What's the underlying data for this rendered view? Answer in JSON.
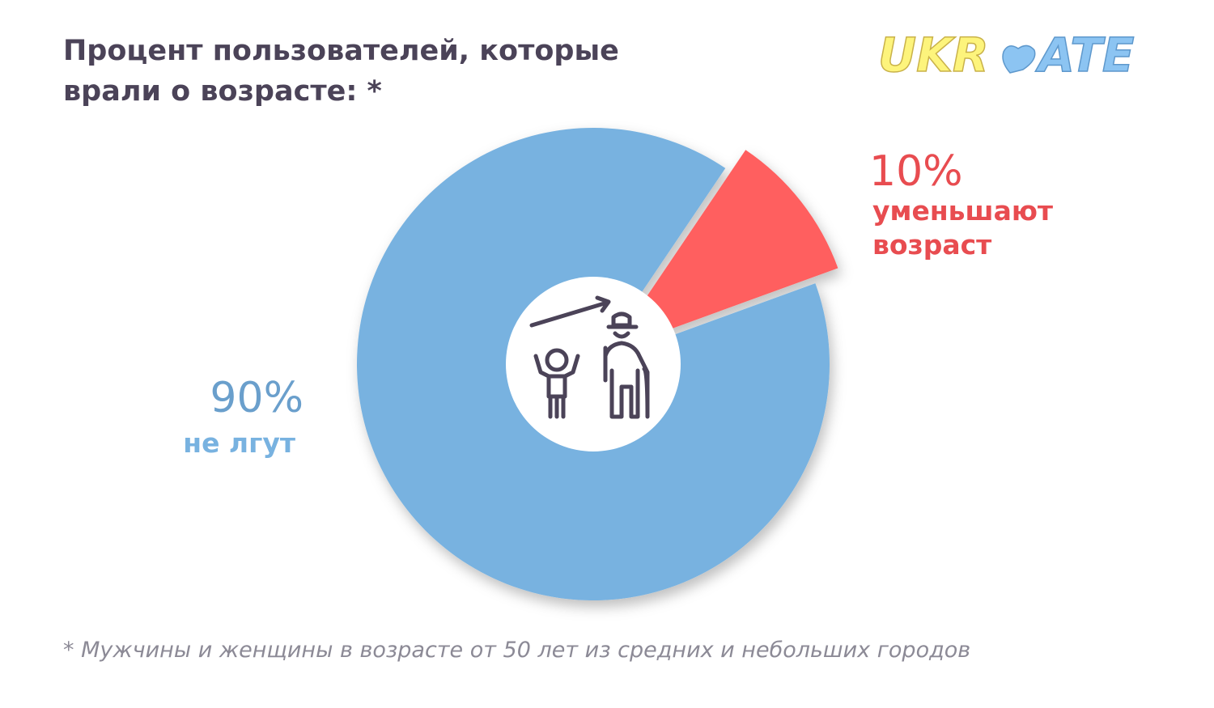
{
  "chart_data": {
    "type": "pie",
    "title": "Процент пользователей, которые врали о возрасте: *",
    "categories": [
      "не лгут",
      "уменьшают возраст"
    ],
    "values": [
      90,
      10
    ],
    "value_labels": [
      "90%",
      "10%"
    ],
    "colors": [
      "#78b2e0",
      "#ff5f5f"
    ]
  },
  "logo": {
    "left": "UKR",
    "right": "ATE"
  },
  "footnote": "* Мужчины и женщины в возрасте от 50 лет из средних и небольших городов"
}
